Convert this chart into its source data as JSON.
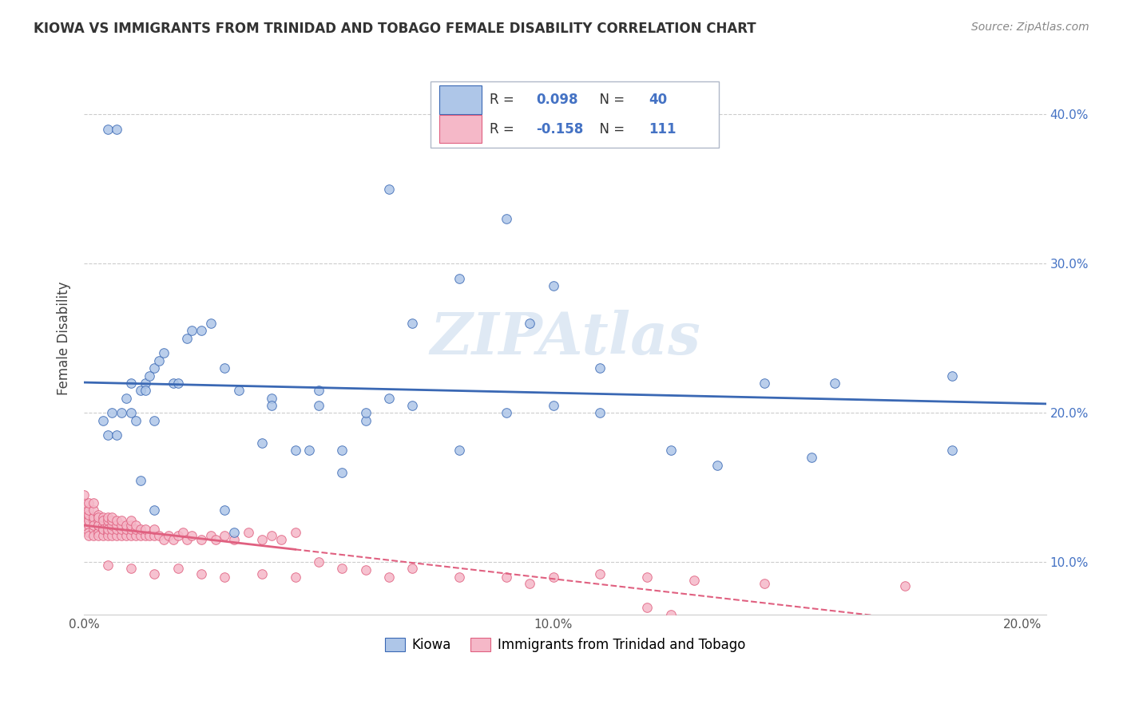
{
  "title": "KIOWA VS IMMIGRANTS FROM TRINIDAD AND TOBAGO FEMALE DISABILITY CORRELATION CHART",
  "source": "Source: ZipAtlas.com",
  "ylabel": "Female Disability",
  "legend_label1": "Kiowa",
  "legend_label2": "Immigrants from Trinidad and Tobago",
  "R1": 0.098,
  "N1": 40,
  "R2": -0.158,
  "N2": 111,
  "color_kiowa": "#aec6e8",
  "color_tt": "#f5b8c8",
  "line_color_kiowa": "#3a68b4",
  "line_color_tt": "#e06080",
  "watermark": "ZIPAtlas",
  "background_color": "#ffffff",
  "xlim": [
    0.0,
    0.205
  ],
  "ylim": [
    0.065,
    0.435
  ],
  "yticks": [
    0.1,
    0.2,
    0.3,
    0.4
  ],
  "yticklabels": [
    "10.0%",
    "20.0%",
    "30.0%",
    "40.0%"
  ],
  "xticks": [
    0.0,
    0.1,
    0.2
  ],
  "xticklabels": [
    "0.0%",
    "10.0%",
    "20.0%"
  ],
  "kiowa_x": [
    0.004,
    0.005,
    0.006,
    0.007,
    0.008,
    0.009,
    0.01,
    0.01,
    0.011,
    0.012,
    0.013,
    0.013,
    0.014,
    0.015,
    0.015,
    0.016,
    0.017,
    0.019,
    0.02,
    0.022,
    0.023,
    0.025,
    0.027,
    0.03,
    0.033,
    0.04,
    0.045,
    0.05,
    0.055,
    0.06,
    0.065,
    0.07,
    0.08,
    0.09,
    0.095,
    0.1,
    0.11,
    0.145,
    0.16,
    0.185
  ],
  "kiowa_y": [
    0.195,
    0.185,
    0.2,
    0.185,
    0.2,
    0.21,
    0.2,
    0.22,
    0.195,
    0.215,
    0.22,
    0.215,
    0.225,
    0.23,
    0.195,
    0.235,
    0.24,
    0.22,
    0.22,
    0.25,
    0.255,
    0.255,
    0.26,
    0.23,
    0.215,
    0.21,
    0.175,
    0.215,
    0.16,
    0.195,
    0.35,
    0.26,
    0.29,
    0.33,
    0.26,
    0.285,
    0.23,
    0.22,
    0.22,
    0.225
  ],
  "kiowa_x_extra": [
    0.005,
    0.007,
    0.012,
    0.015,
    0.03,
    0.032,
    0.038,
    0.048,
    0.055,
    0.065,
    0.08,
    0.125,
    0.155,
    0.135,
    0.185,
    0.04,
    0.05,
    0.06,
    0.07,
    0.09,
    0.1,
    0.11
  ],
  "kiowa_y_extra": [
    0.39,
    0.39,
    0.155,
    0.135,
    0.135,
    0.12,
    0.18,
    0.175,
    0.175,
    0.21,
    0.175,
    0.175,
    0.17,
    0.165,
    0.175,
    0.205,
    0.205,
    0.2,
    0.205,
    0.2,
    0.205,
    0.2
  ],
  "tt_x_dense": [
    0.0,
    0.0,
    0.0,
    0.0,
    0.0,
    0.001,
    0.001,
    0.001,
    0.001,
    0.001,
    0.001,
    0.001,
    0.001,
    0.002,
    0.002,
    0.002,
    0.002,
    0.002,
    0.002,
    0.002,
    0.003,
    0.003,
    0.003,
    0.003,
    0.003,
    0.003,
    0.003,
    0.004,
    0.004,
    0.004,
    0.004,
    0.004,
    0.004,
    0.005,
    0.005,
    0.005,
    0.005,
    0.005,
    0.005,
    0.006,
    0.006,
    0.006,
    0.006,
    0.006,
    0.007,
    0.007,
    0.007,
    0.007,
    0.008,
    0.008,
    0.008,
    0.008,
    0.009,
    0.009,
    0.009,
    0.01,
    0.01,
    0.01,
    0.01,
    0.011,
    0.011,
    0.011,
    0.012,
    0.012,
    0.013,
    0.013,
    0.014,
    0.015,
    0.015,
    0.016,
    0.017,
    0.018,
    0.019,
    0.02,
    0.021,
    0.022,
    0.023,
    0.025,
    0.027,
    0.028,
    0.03,
    0.032,
    0.035,
    0.038,
    0.04,
    0.042,
    0.045
  ],
  "tt_y_dense": [
    0.135,
    0.13,
    0.125,
    0.14,
    0.145,
    0.13,
    0.125,
    0.128,
    0.132,
    0.12,
    0.118,
    0.135,
    0.14,
    0.128,
    0.122,
    0.118,
    0.13,
    0.125,
    0.135,
    0.14,
    0.125,
    0.12,
    0.128,
    0.132,
    0.118,
    0.125,
    0.13,
    0.122,
    0.118,
    0.125,
    0.13,
    0.128,
    0.122,
    0.12,
    0.118,
    0.125,
    0.128,
    0.122,
    0.13,
    0.118,
    0.122,
    0.125,
    0.128,
    0.13,
    0.118,
    0.122,
    0.125,
    0.128,
    0.118,
    0.122,
    0.125,
    0.128,
    0.118,
    0.122,
    0.125,
    0.118,
    0.122,
    0.125,
    0.128,
    0.118,
    0.122,
    0.125,
    0.118,
    0.122,
    0.118,
    0.122,
    0.118,
    0.118,
    0.122,
    0.118,
    0.115,
    0.118,
    0.115,
    0.118,
    0.12,
    0.115,
    0.118,
    0.115,
    0.118,
    0.115,
    0.118,
    0.115,
    0.12,
    0.115,
    0.118,
    0.115,
    0.12
  ],
  "tt_x_sparse": [
    0.005,
    0.01,
    0.015,
    0.02,
    0.025,
    0.03,
    0.038,
    0.045,
    0.05,
    0.055,
    0.06,
    0.065,
    0.07,
    0.08,
    0.09,
    0.095,
    0.1,
    0.11,
    0.12,
    0.13,
    0.145,
    0.175,
    0.12,
    0.125
  ],
  "tt_y_sparse": [
    0.098,
    0.096,
    0.092,
    0.096,
    0.092,
    0.09,
    0.092,
    0.09,
    0.1,
    0.096,
    0.095,
    0.09,
    0.096,
    0.09,
    0.09,
    0.086,
    0.09,
    0.092,
    0.09,
    0.088,
    0.086,
    0.084,
    0.07,
    0.065
  ],
  "tt_line_solid_end": 0.045,
  "tt_line_dashed_end": 0.205
}
